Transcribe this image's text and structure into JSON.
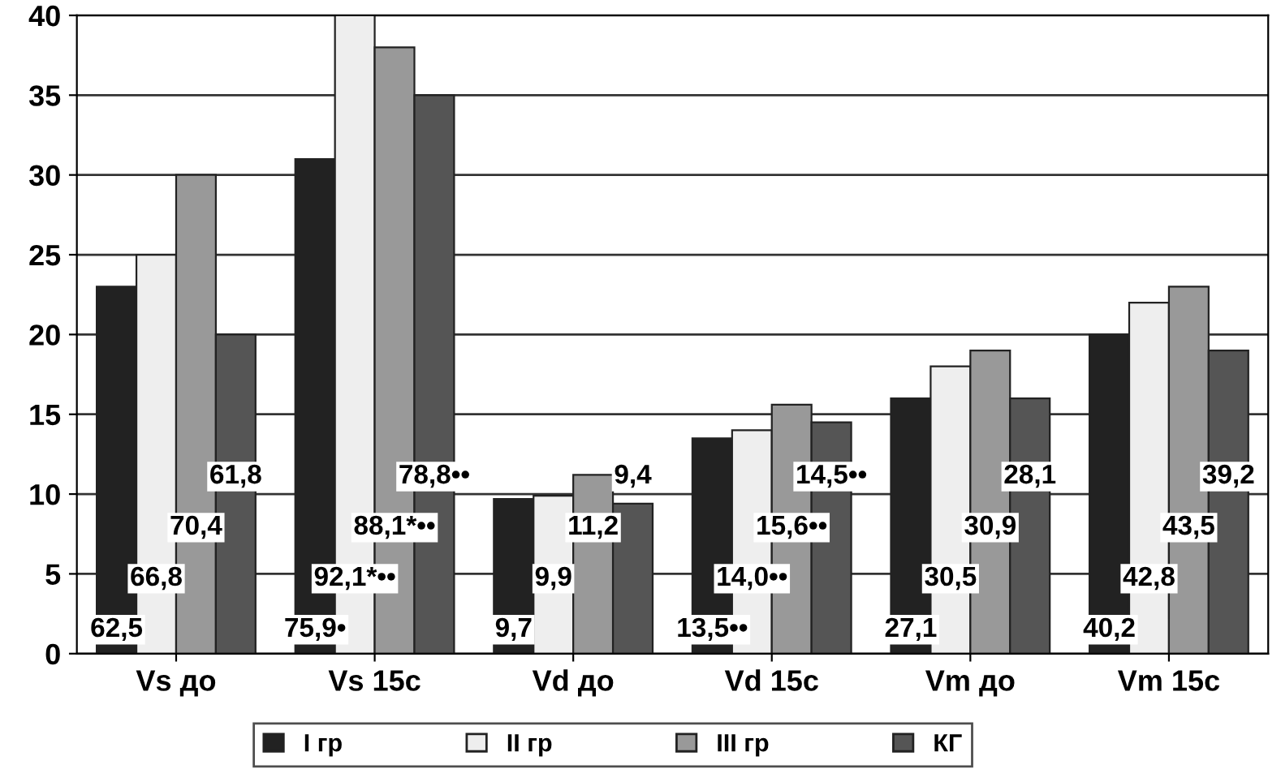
{
  "chart_data": {
    "type": "bar",
    "categories": [
      "Vs до",
      "Vs 15c",
      "Vd до",
      "Vd 15c",
      "Vm до",
      "Vm 15c"
    ],
    "series": [
      {
        "name": "I гр",
        "color": "#222222",
        "values": [
          23,
          31,
          9.7,
          13.5,
          16,
          20
        ]
      },
      {
        "name": "II гр",
        "color": "#eeeeee",
        "values": [
          25,
          40,
          9.9,
          14.0,
          18,
          22
        ]
      },
      {
        "name": "III гр",
        "color": "#999999",
        "values": [
          30,
          38,
          11.2,
          15.6,
          19,
          23
        ]
      },
      {
        "name": "КГ",
        "color": "#555555",
        "values": [
          20,
          35,
          9.4,
          14.5,
          16,
          19
        ]
      }
    ],
    "annotations": [
      "62,5",
      "66,8",
      "70,4",
      "61,8",
      "75,9•",
      "92,1*••",
      "88,1*••",
      "78,8••",
      "9,7",
      "9,9",
      "11,2",
      "9,4",
      "13,5••",
      "14,0••",
      "15,6••",
      "14,5••",
      "27,1",
      "30,5",
      "30,9",
      "28,1",
      "40,2",
      "42,8",
      "43,5",
      "39,2"
    ],
    "ylim": [
      0,
      40
    ],
    "yticks": [
      0,
      5,
      10,
      15,
      20,
      25,
      30,
      35,
      40
    ],
    "grid": "y",
    "legend": "bottom"
  }
}
